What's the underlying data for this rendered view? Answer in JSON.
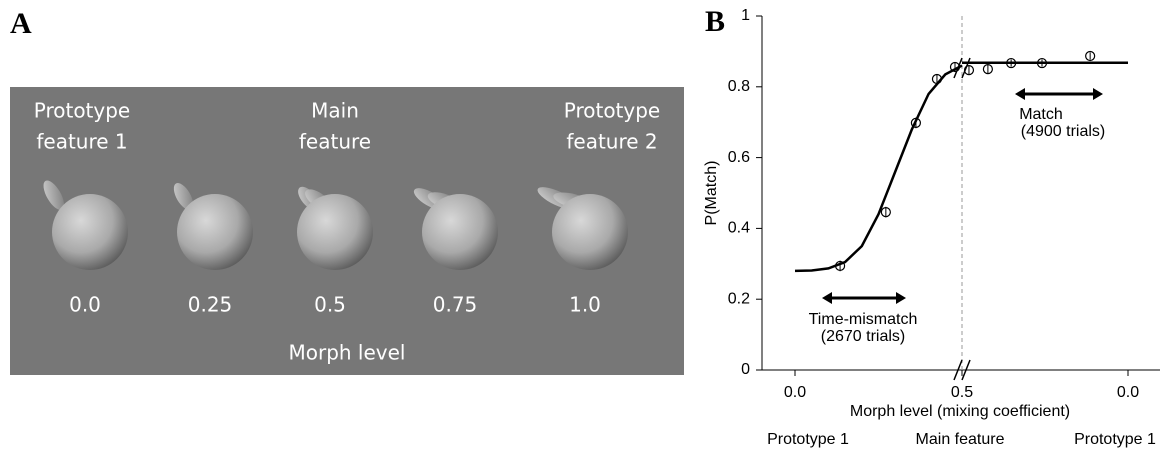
{
  "panel_a": {
    "label": "A",
    "features": [
      [
        "Prototype",
        "feature 1"
      ],
      [
        "Main",
        "feature"
      ],
      [
        "Prototype",
        "feature 2"
      ]
    ],
    "levels": [
      "0.0",
      "0.25",
      "0.5",
      "0.75",
      "1.0"
    ],
    "axis_label": "Morph level"
  },
  "chart_data": {
    "type": "scatter",
    "panel_label": "B",
    "x_label": "Morph level (mixing coefficient)",
    "y_label": "P(Match)",
    "xlim": [
      0,
      0.5
    ],
    "x2lim": [
      0.5,
      0
    ],
    "xticks": [
      {
        "value": 0,
        "label": "0.0"
      },
      0.5
    ],
    "x2ticks": [
      {
        "value": 0,
        "label": "0.0"
      }
    ],
    "ylim": [
      0,
      1
    ],
    "yticks": [
      0,
      0.2,
      0.4,
      0.6,
      0.8,
      1
    ],
    "end_labels": [
      "Prototype 1",
      "Main feature",
      "Prototype 1"
    ],
    "color": "#000000",
    "series": [
      {
        "axis": "x",
        "x": [
          0.135,
          0.272,
          0.362,
          0.425,
          0.479
        ],
        "values": [
          0.294,
          0.446,
          0.698,
          0.822,
          0.856
        ],
        "errors": [
          0.015,
          0.015,
          0.015,
          0.012,
          0.012
        ]
      },
      {
        "axis": "x2",
        "x": [
          0.479,
          0.422,
          0.352,
          0.259,
          0.114
        ],
        "values": [
          0.847,
          0.85,
          0.867,
          0.867,
          0.887
        ],
        "errors": [
          0.012,
          0.012,
          0.01,
          0.01,
          0.01
        ]
      }
    ],
    "fit": [
      {
        "axis": "x",
        "x": [
          0,
          0.05,
          0.1,
          0.15,
          0.2,
          0.25,
          0.3,
          0.35,
          0.4,
          0.45,
          0.5
        ],
        "values": [
          0.28,
          0.281,
          0.287,
          0.305,
          0.35,
          0.44,
          0.56,
          0.68,
          0.78,
          0.835,
          0.86
        ]
      },
      {
        "axis": "x2",
        "x": [
          0.5,
          0
        ],
        "values": [
          0.868,
          0.868
        ]
      }
    ],
    "annotations": [
      {
        "lines": [
          "Time-mismatch",
          "(2670 trials)"
        ]
      },
      {
        "lines": [
          "Match",
          "(4900 trials)"
        ]
      }
    ]
  }
}
